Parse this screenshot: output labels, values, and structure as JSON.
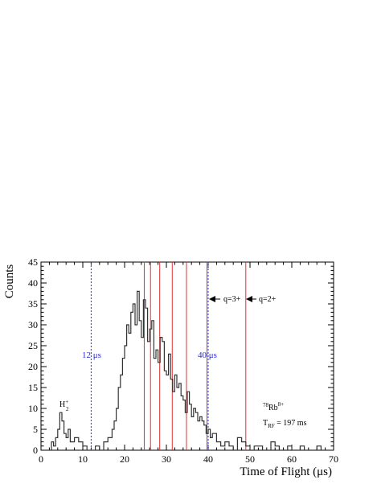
{
  "chart_data": {
    "type": "line",
    "title": "",
    "xlabel": "Time of Flight (μs)",
    "ylabel": "Counts",
    "xlim": [
      0,
      70
    ],
    "ylim": [
      0,
      45
    ],
    "x_ticks": [
      0,
      10,
      20,
      30,
      40,
      50,
      60,
      70
    ],
    "y_ticks": [
      0,
      5,
      10,
      15,
      20,
      25,
      30,
      35,
      40,
      45
    ],
    "grid": false,
    "series": [
      {
        "color": "#333333",
        "style": "step",
        "x": [
          1.5,
          2.5,
          3.0,
          3.5,
          4.0,
          4.5,
          5.0,
          5.5,
          6.0,
          6.5,
          7.0,
          8.0,
          9.0,
          10.0,
          11.0,
          12.0,
          13.0,
          14.0,
          15.0,
          16.0,
          17.0,
          17.5,
          18.0,
          18.5,
          19.0,
          19.5,
          20.0,
          20.5,
          21.0,
          21.5,
          22.0,
          22.5,
          23.0,
          23.5,
          24.0,
          24.5,
          25.0,
          25.5,
          26.0,
          26.5,
          27.0,
          27.5,
          28.0,
          28.5,
          29.0,
          29.5,
          30.0,
          30.5,
          31.0,
          31.5,
          32.0,
          32.5,
          33.0,
          33.5,
          34.0,
          34.5,
          35.0,
          35.5,
          36.0,
          36.5,
          37.0,
          37.5,
          38.0,
          38.5,
          39.0,
          39.5,
          40.0,
          40.5,
          41.0,
          42.0,
          43.0,
          44.0,
          45.0,
          46.0,
          47.0,
          48.0,
          49.0,
          50.0,
          51.0,
          52.0,
          53.0,
          54.0,
          55.0,
          56.0,
          57.0,
          58.0,
          59.0,
          60.0,
          61.0,
          62.0,
          63.0,
          64.0,
          65.0,
          66.0,
          67.0,
          68.0
        ],
        "values": [
          0,
          2,
          1,
          3,
          5,
          9,
          7,
          4,
          3,
          5,
          2,
          3,
          2,
          1,
          0,
          0,
          1,
          0,
          2,
          3,
          5,
          7,
          10,
          15,
          18,
          22,
          25,
          30,
          28,
          33,
          35,
          30,
          38,
          31,
          27,
          36,
          34,
          26,
          29,
          31,
          22,
          24,
          21,
          27,
          26,
          19,
          18,
          23,
          17,
          14,
          18,
          15,
          16,
          13,
          12,
          9,
          14,
          11,
          8,
          10,
          9,
          7,
          8,
          7,
          6,
          4,
          5,
          3,
          4,
          2,
          1,
          2,
          1,
          0,
          3,
          2,
          1,
          0,
          1,
          1,
          0,
          0,
          2,
          1,
          0,
          0,
          1,
          0,
          0,
          1,
          0,
          0,
          0,
          1,
          0,
          0
        ]
      }
    ],
    "vertical_lines": {
      "red": [
        24.7,
        26.2,
        28.4,
        31.4,
        34.8,
        39.7,
        49.0
      ],
      "blue_dashed": [
        12.0,
        40.0
      ]
    },
    "annotations": {
      "label_12": "12 μs",
      "label_40": "40 μs",
      "q3": "q=3+",
      "q2": "q=2+",
      "h2_base": "H",
      "h2_sub": "2",
      "h2_sup": "+",
      "rb_mass": "78",
      "rb_elem": "Rb",
      "rb_charge": "8+",
      "trf_base": "T",
      "trf_sub": "RF",
      "trf_value": " = 197 ms"
    }
  }
}
